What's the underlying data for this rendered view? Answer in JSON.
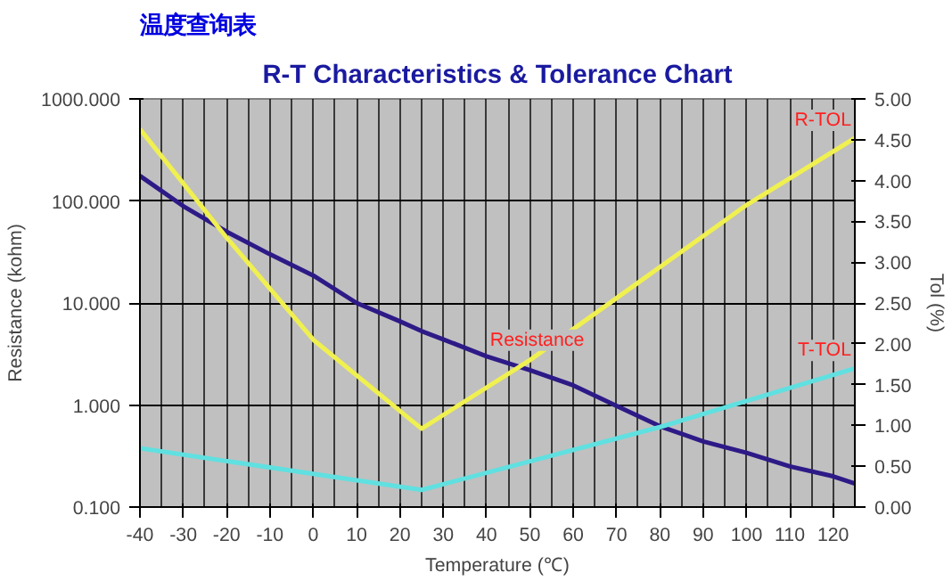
{
  "chart_data": {
    "type": "line",
    "title": "温度查询表",
    "subtitle": "R-T Characteristics & Tolerance Chart",
    "xlabel": "Temperature (℃)",
    "ylabel": "Resistance (kohm)",
    "y2label": "Tol (%)",
    "x": [
      -40,
      -30,
      -20,
      -10,
      0,
      10,
      20,
      25,
      30,
      40,
      50,
      60,
      70,
      80,
      90,
      100,
      110,
      120,
      125
    ],
    "series": [
      {
        "name": "Resistance",
        "color": "#2e1a87",
        "values": [
          176,
          89,
          50,
          30,
          18.6,
          10,
          6.6,
          5.3,
          4.4,
          3.0,
          2.2,
          1.56,
          0.98,
          0.62,
          0.44,
          0.34,
          0.25,
          0.2,
          0.17
        ]
      },
      {
        "name": "R-TOL",
        "color": "#f0f050",
        "axis": "y2",
        "x": [
          -40,
          -20,
          0,
          25,
          50,
          75,
          100,
          125
        ],
        "values": [
          4.63,
          3.3,
          2.05,
          0.96,
          1.8,
          2.75,
          3.7,
          4.52
        ]
      },
      {
        "name": "T-TOL",
        "color": "#60e0e0",
        "axis": "y2",
        "x": [
          -40,
          25,
          80,
          125
        ],
        "values": [
          0.72,
          0.21,
          0.98,
          1.7
        ]
      }
    ],
    "xlim": [
      -40,
      125
    ],
    "xticks": [
      -40,
      -30,
      -20,
      -10,
      0,
      10,
      20,
      30,
      40,
      50,
      60,
      70,
      80,
      90,
      100,
      110,
      120
    ],
    "log": "y",
    "ylim": [
      0.1,
      1000
    ],
    "yticks": [
      {
        "value": 0.1,
        "label": "0.100"
      },
      {
        "value": 1,
        "label": "1.000"
      },
      {
        "value": 10,
        "label": "10.000"
      },
      {
        "value": 100,
        "label": "100.000"
      },
      {
        "value": 1000,
        "label": "1000.000"
      }
    ],
    "y2lim": [
      0,
      5
    ],
    "y2ticks": [
      {
        "value": 0,
        "label": "0.00"
      },
      {
        "value": 0.5,
        "label": "0.50"
      },
      {
        "value": 1,
        "label": "1.00"
      },
      {
        "value": 1.5,
        "label": "1.50"
      },
      {
        "value": 2,
        "label": "2.00"
      },
      {
        "value": 2.5,
        "label": "2.50"
      },
      {
        "value": 3,
        "label": "3.00"
      },
      {
        "value": 3.5,
        "label": "3.50"
      },
      {
        "value": 4,
        "label": "4.00"
      },
      {
        "value": 4.5,
        "label": "4.50"
      },
      {
        "value": 5,
        "label": "5.00"
      }
    ],
    "grid": true,
    "marker": "none",
    "line_style": "solid"
  }
}
